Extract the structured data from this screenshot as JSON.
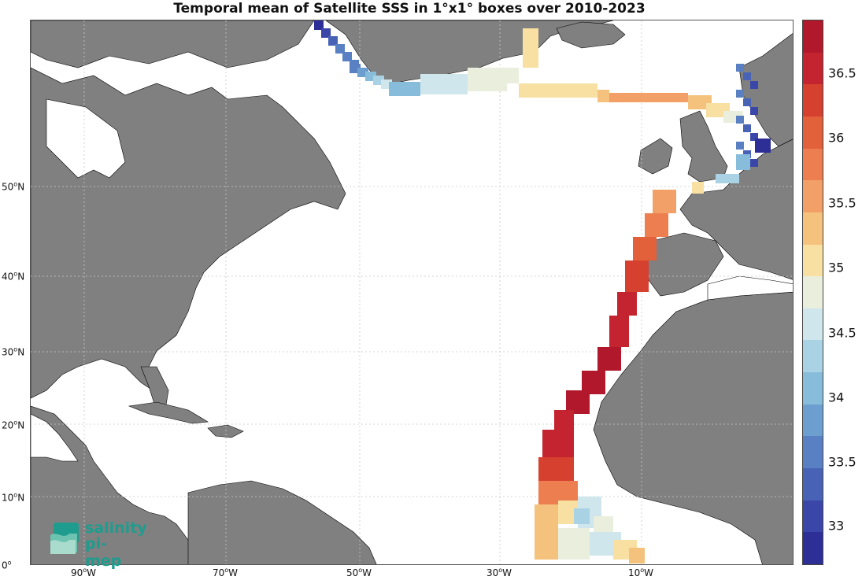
{
  "title": "Temporal mean of Satellite SSS in 1°x1° boxes over 2010-2023",
  "map": {
    "lon_ticks": [
      {
        "deg": "90",
        "hem": "W"
      },
      {
        "deg": "70",
        "hem": "W"
      },
      {
        "deg": "50",
        "hem": "W"
      },
      {
        "deg": "30",
        "hem": "W"
      },
      {
        "deg": "10",
        "hem": "W"
      }
    ],
    "lat_ticks": [
      {
        "deg": "50",
        "hem": "N"
      },
      {
        "deg": "40",
        "hem": "N"
      },
      {
        "deg": "30",
        "hem": "N"
      },
      {
        "deg": "20",
        "hem": "N"
      },
      {
        "deg": "10",
        "hem": "N"
      },
      {
        "deg": "0",
        "hem": ""
      }
    ],
    "land_color": "#808080",
    "ocean_color": "#ffffff",
    "grid_color": "#c8c8c8"
  },
  "colorbar": {
    "tick_labels": [
      "36.5",
      "36",
      "35.5",
      "35",
      "34.5",
      "34",
      "33.5",
      "33"
    ],
    "colors": [
      "#b2182b",
      "#c42430",
      "#d6402f",
      "#e2603a",
      "#ec7e50",
      "#f2a068",
      "#f5c27e",
      "#f7e0a2",
      "#eaeedd",
      "#cfe6ec",
      "#a9d3e4",
      "#88bcdb",
      "#6c9fcf",
      "#5880c2",
      "#4863b6",
      "#3a46a8",
      "#2d2e96"
    ],
    "value_min": 32.6,
    "value_max": 36.9
  },
  "logo": {
    "line1": "salinity",
    "line2": "pi-mep"
  }
}
